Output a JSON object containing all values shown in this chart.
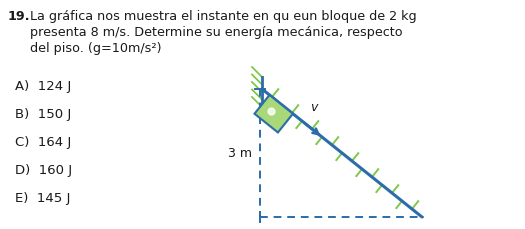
{
  "title_num": "19.",
  "title_line1": "La gráfica nos muestra el instante en qu eun bloque de 2 kg",
  "title_line2": "presenta 8 m/s. Determine su energía mecánica, respecto",
  "title_line3": "del piso. (g=10m/s²)",
  "answers": [
    "A)  124 J",
    "B)  150 J",
    "C)  164 J",
    "D)  160 J",
    "E)  145 J"
  ],
  "label_3m": "3 m",
  "label_v": "v",
  "text_color": "#1a1a1a",
  "blue_color": "#2a6da8",
  "green_block_face": "#a8d878",
  "green_hatch": "#7ec84a",
  "bg_color": "#ffffff",
  "font_size_title": 9.2,
  "font_size_answers": 9.5,
  "font_size_label": 9.0
}
